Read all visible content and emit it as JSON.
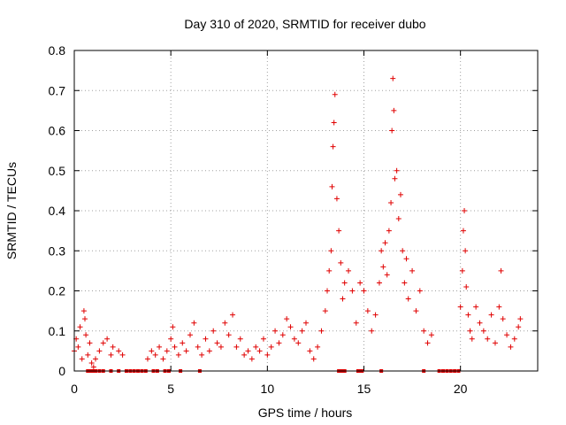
{
  "chart_data": {
    "type": "scatter",
    "title": "Day 310 of 2020, SRMTID for receiver dubo",
    "xlabel": "GPS time / hours",
    "ylabel": "SRMTID / TECUs",
    "xlim": [
      0,
      24
    ],
    "ylim": [
      0,
      0.8
    ],
    "xticks": [
      0,
      5,
      10,
      15,
      20
    ],
    "yticks": [
      0,
      0.1,
      0.2,
      0.3,
      0.4,
      0.5,
      0.6,
      0.7,
      0.8
    ],
    "xtick_labels": [
      "0",
      "5",
      "10",
      "15",
      "20"
    ],
    "ytick_labels": [
      "0",
      "0.1",
      "0.2",
      "0.3",
      "0.4",
      "0.5",
      "0.6",
      "0.7",
      "0.8"
    ],
    "grid": true,
    "marker": "+",
    "color": "#e00000",
    "series": [
      {
        "name": "SRMTID",
        "x": [
          0.0,
          0.1,
          0.2,
          0.3,
          0.4,
          0.5,
          0.55,
          0.6,
          0.7,
          0.8,
          0.9,
          1.0,
          1.1,
          1.3,
          1.5,
          1.7,
          1.9,
          2.0,
          2.3,
          2.5,
          3.8,
          4.0,
          4.2,
          4.4,
          4.6,
          4.8,
          5.0,
          5.1,
          5.2,
          5.4,
          5.6,
          5.8,
          6.0,
          6.2,
          6.4,
          6.6,
          6.8,
          7.0,
          7.2,
          7.4,
          7.6,
          7.8,
          8.0,
          8.2,
          8.4,
          8.6,
          8.8,
          9.0,
          9.2,
          9.4,
          9.6,
          9.8,
          10.0,
          10.2,
          10.4,
          10.6,
          10.8,
          11.0,
          11.2,
          11.4,
          11.6,
          11.8,
          12.0,
          12.2,
          12.4,
          12.6,
          12.8,
          13.0,
          13.1,
          13.2,
          13.3,
          13.35,
          13.4,
          13.45,
          13.5,
          13.6,
          13.7,
          13.8,
          13.9,
          14.0,
          14.2,
          14.4,
          14.6,
          14.8,
          15.0,
          15.2,
          15.4,
          15.6,
          15.8,
          15.9,
          16.0,
          16.1,
          16.2,
          16.3,
          16.4,
          16.45,
          16.5,
          16.55,
          16.6,
          16.7,
          16.8,
          16.9,
          17.0,
          17.1,
          17.2,
          17.3,
          17.5,
          17.7,
          17.9,
          18.1,
          18.3,
          18.5,
          20.0,
          20.1,
          20.15,
          20.2,
          20.25,
          20.3,
          20.4,
          20.5,
          20.6,
          20.8,
          21.0,
          21.2,
          21.4,
          21.6,
          21.8,
          22.0,
          22.1,
          22.2,
          22.4,
          22.6,
          22.8,
          23.0,
          23.1
        ],
        "y": [
          0.05,
          0.08,
          0.06,
          0.11,
          0.03,
          0.15,
          0.13,
          0.09,
          0.04,
          0.07,
          0.02,
          0.01,
          0.03,
          0.05,
          0.07,
          0.08,
          0.04,
          0.06,
          0.05,
          0.04,
          0.03,
          0.05,
          0.04,
          0.06,
          0.03,
          0.05,
          0.08,
          0.11,
          0.06,
          0.04,
          0.07,
          0.05,
          0.09,
          0.12,
          0.06,
          0.04,
          0.08,
          0.05,
          0.1,
          0.07,
          0.06,
          0.12,
          0.09,
          0.14,
          0.06,
          0.08,
          0.04,
          0.05,
          0.03,
          0.06,
          0.05,
          0.08,
          0.04,
          0.06,
          0.1,
          0.07,
          0.09,
          0.13,
          0.11,
          0.08,
          0.07,
          0.1,
          0.12,
          0.05,
          0.03,
          0.06,
          0.1,
          0.15,
          0.2,
          0.25,
          0.3,
          0.46,
          0.56,
          0.62,
          0.69,
          0.43,
          0.35,
          0.27,
          0.18,
          0.22,
          0.25,
          0.2,
          0.12,
          0.22,
          0.2,
          0.15,
          0.1,
          0.14,
          0.22,
          0.3,
          0.26,
          0.32,
          0.24,
          0.35,
          0.42,
          0.6,
          0.73,
          0.65,
          0.48,
          0.5,
          0.38,
          0.44,
          0.3,
          0.22,
          0.28,
          0.18,
          0.25,
          0.15,
          0.2,
          0.1,
          0.07,
          0.09,
          0.16,
          0.25,
          0.35,
          0.4,
          0.3,
          0.21,
          0.14,
          0.1,
          0.08,
          0.16,
          0.12,
          0.1,
          0.08,
          0.14,
          0.07,
          0.16,
          0.25,
          0.13,
          0.09,
          0.06,
          0.08,
          0.11,
          0.13
        ]
      }
    ],
    "gap_markers_x": [
      0.7,
      0.85,
      1.0,
      1.1,
      1.3,
      1.5,
      1.9,
      2.3,
      2.7,
      2.9,
      3.1,
      3.3,
      3.5,
      3.7,
      4.1,
      4.3,
      4.7,
      4.9,
      5.5,
      6.5,
      13.7,
      13.8,
      13.9,
      14.0,
      14.7,
      14.8,
      14.9,
      15.9,
      18.1,
      18.9,
      19.1,
      19.3,
      19.5,
      19.7,
      19.9
    ]
  }
}
